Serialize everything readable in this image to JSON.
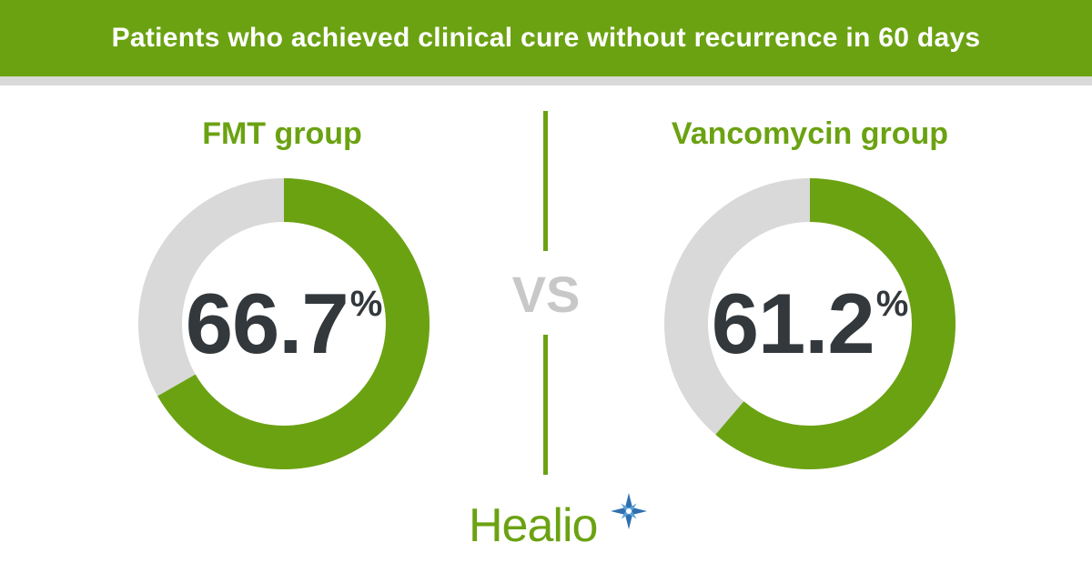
{
  "header": {
    "title": "Patients who achieved clinical cure without recurrence in 60 days"
  },
  "divider": {
    "vs_label": "VS"
  },
  "logo": {
    "text": "Healio",
    "icon": "star-icon"
  },
  "colors": {
    "accent": "#6ba212",
    "track": "#d9d9d9",
    "value_text": "#33383c",
    "vs_text": "#c8c8c8"
  },
  "chart_data": [
    {
      "type": "pie",
      "title": "FMT group",
      "value": 66.7,
      "display_value": "66.7",
      "unit": "%",
      "max": 100
    },
    {
      "type": "pie",
      "title": "Vancomycin group",
      "value": 61.2,
      "display_value": "61.2",
      "unit": "%",
      "max": 100
    }
  ]
}
